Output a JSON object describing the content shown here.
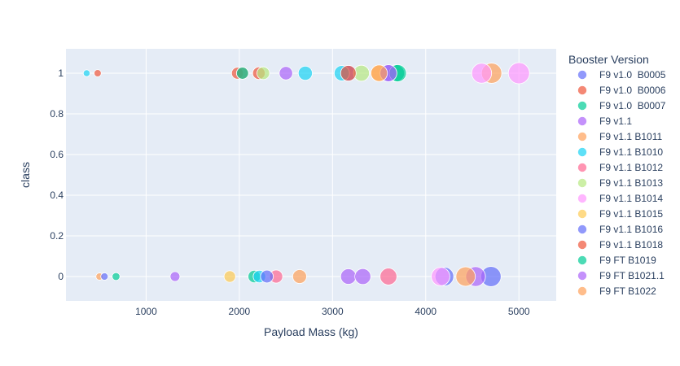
{
  "chart_data": {
    "type": "scatter",
    "title": "",
    "xlabel": "Payload Mass (kg)",
    "ylabel": "class",
    "xlim": [
      140,
      5400
    ],
    "ylim": [
      -0.12,
      1.12
    ],
    "x_ticks": [
      1000,
      2000,
      3000,
      4000,
      5000
    ],
    "y_ticks": [
      0,
      0.2,
      0.4,
      0.6,
      0.8,
      1
    ],
    "x_tick_labels": [
      "1000",
      "2000",
      "3000",
      "4000",
      "5000"
    ],
    "y_tick_labels": [
      "0",
      "0.2",
      "0.4",
      "0.6",
      "0.8",
      "1"
    ],
    "grid": true,
    "legend": {
      "title": "Booster Version",
      "placement": "right"
    },
    "series": [
      {
        "name": "F9 v1.0  B0005",
        "color": "#636efa",
        "points": [
          {
            "x": 3170,
            "y": 1
          },
          {
            "x": 4200,
            "y": 0
          },
          {
            "x": 4700,
            "y": 0
          }
        ]
      },
      {
        "name": "F9 v1.0  B0006",
        "color": "#ef553b",
        "points": [
          {
            "x": 480,
            "y": 1
          },
          {
            "x": 1980,
            "y": 1
          },
          {
            "x": 2210,
            "y": 1
          }
        ]
      },
      {
        "name": "F9 v1.0  B0007",
        "color": "#00cc96",
        "points": [
          {
            "x": 677,
            "y": 0
          },
          {
            "x": 2160,
            "y": 0
          },
          {
            "x": 3680,
            "y": 1
          }
        ]
      },
      {
        "name": "F9 v1.1",
        "color": "#ab63fa",
        "points": [
          {
            "x": 1310,
            "y": 0
          },
          {
            "x": 2500,
            "y": 1
          },
          {
            "x": 3170,
            "y": 0
          },
          {
            "x": 3325,
            "y": 0
          },
          {
            "x": 4535,
            "y": 0
          }
        ]
      },
      {
        "name": "F9 v1.1 B1011",
        "color": "#ffa15a",
        "points": [
          {
            "x": 500,
            "y": 0
          },
          {
            "x": 2647,
            "y": 0
          },
          {
            "x": 4428,
            "y": 0
          },
          {
            "x": 4707,
            "y": 1
          }
        ]
      },
      {
        "name": "F9 v1.1 B1010",
        "color": "#19d3f3",
        "points": [
          {
            "x": 362,
            "y": 1
          },
          {
            "x": 2216,
            "y": 0
          },
          {
            "x": 2708,
            "y": 1
          },
          {
            "x": 3100,
            "y": 1
          }
        ]
      },
      {
        "name": "F9 v1.1 B1012",
        "color": "#ff6692",
        "points": [
          {
            "x": 2395,
            "y": 0
          },
          {
            "x": 3600,
            "y": 0
          }
        ]
      },
      {
        "name": "F9 v1.1 B1013",
        "color": "#b6e880",
        "points": [
          {
            "x": 2257,
            "y": 1
          },
          {
            "x": 3310,
            "y": 1
          }
        ]
      },
      {
        "name": "F9 v1.1 B1014",
        "color": "#ff97ff",
        "points": [
          {
            "x": 4159,
            "y": 0
          },
          {
            "x": 4600,
            "y": 1
          },
          {
            "x": 5000,
            "y": 1
          }
        ]
      },
      {
        "name": "F9 v1.1 B1015",
        "color": "#fecb52",
        "points": [
          {
            "x": 1898,
            "y": 0
          },
          {
            "x": 3500,
            "y": 1
          }
        ]
      },
      {
        "name": "F9 v1.1 B1016",
        "color": "#636efa",
        "points": [
          {
            "x": 553,
            "y": 0
          },
          {
            "x": 2296,
            "y": 0
          },
          {
            "x": 3600,
            "y": 1
          }
        ]
      },
      {
        "name": "F9 v1.1 B1018",
        "color": "#ef553b",
        "points": [
          {
            "x": 2034,
            "y": 1
          },
          {
            "x": 3170,
            "y": 1
          }
        ]
      },
      {
        "name": "F9 FT B1019",
        "color": "#00cc96",
        "points": [
          {
            "x": 2034,
            "y": 1
          },
          {
            "x": 3700,
            "y": 1
          }
        ]
      },
      {
        "name": "F9 FT B1021.1",
        "color": "#ab63fa",
        "points": [
          {
            "x": 3600,
            "y": 1
          }
        ]
      },
      {
        "name": "F9 FT B1022",
        "color": "#ffa15a",
        "points": [
          {
            "x": 3500,
            "y": 1
          }
        ]
      }
    ]
  }
}
